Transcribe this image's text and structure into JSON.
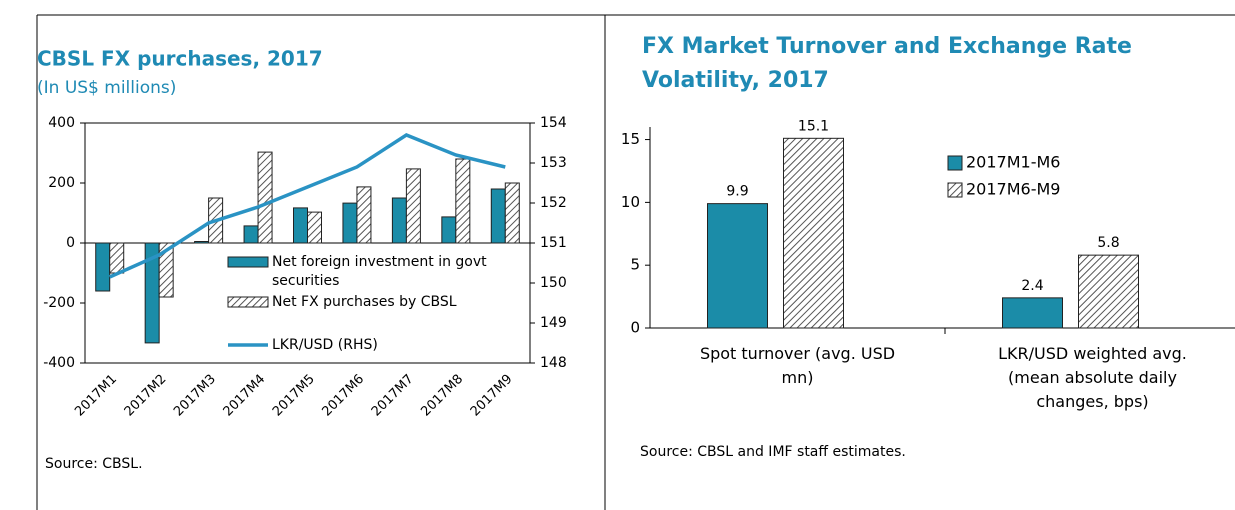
{
  "chart_data": [
    {
      "type": "bar_line",
      "title": "CBSL FX purchases, 2017",
      "subtitle": "(In US$ millions)",
      "source": "Source: CBSL.",
      "categories": [
        "2017M1",
        "2017M2",
        "2017M3",
        "2017M4",
        "2017M5",
        "2017M6",
        "2017M7",
        "2017M8",
        "2017M9"
      ],
      "series": [
        {
          "name": "Net foreign investment in govt securities",
          "color": "#1b8ca8",
          "style": "solid",
          "values": [
            -160,
            -333,
            5,
            57,
            117,
            133,
            150,
            87,
            180
          ]
        },
        {
          "name": "Net FX purchases by CBSL",
          "color": "#555555",
          "style": "hatch",
          "values": [
            -100,
            -180,
            150,
            303,
            103,
            187,
            247,
            280,
            200
          ]
        },
        {
          "name": "LKR/USD (RHS)",
          "color": "#2a93c4",
          "style": "line",
          "axis": "y2",
          "values": [
            150.15,
            150.7,
            151.5,
            151.9,
            152.4,
            152.9,
            153.7,
            153.2,
            152.9
          ]
        }
      ],
      "ylim": [
        -400,
        400
      ],
      "yticks": [
        -400,
        -200,
        0,
        200,
        400
      ],
      "y2lim": [
        148,
        154
      ],
      "y2ticks": [
        148,
        149,
        150,
        151,
        152,
        153,
        154
      ]
    },
    {
      "type": "bar",
      "title": "FX Market Turnover and Exchange Rate Volatility, 2017",
      "source": "Source: CBSL and IMF staff estimates.",
      "categories": [
        "Spot turnover (avg. USD mn)",
        "LKR/USD weighted avg. (mean absolute daily changes, bps)"
      ],
      "series": [
        {
          "name": "2017M1-M6",
          "color": "#1b8ca8",
          "style": "solid",
          "values": [
            9.9,
            2.4
          ]
        },
        {
          "name": "2017M6-M9",
          "color": "#555555",
          "style": "hatch",
          "values": [
            15.1,
            5.8
          ]
        }
      ],
      "ylim": [
        0,
        16
      ],
      "yticks": [
        0,
        5,
        10,
        15
      ]
    }
  ]
}
